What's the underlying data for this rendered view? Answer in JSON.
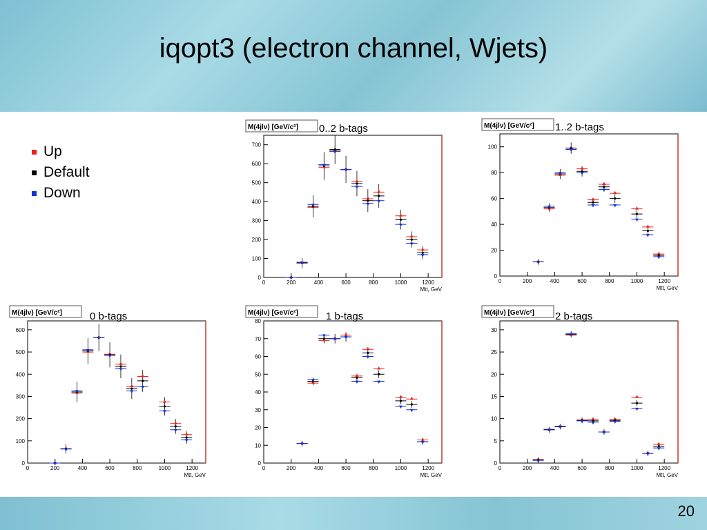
{
  "slide": {
    "title": "iqopt3 (electron channel, Wjets)",
    "page_number": "20",
    "legend": [
      {
        "label": "Up",
        "color": "#e8231c"
      },
      {
        "label": "Default",
        "color": "#000000"
      },
      {
        "label": "Down",
        "color": "#1532d6"
      }
    ]
  },
  "chart_data": [
    {
      "type": "scatter",
      "title": "0..2 b-tags",
      "box_label": "M(4jlν) [GeV/c²]",
      "xlabel": "Mtt, GeV",
      "xlim": [
        0,
        1300
      ],
      "ylim": [
        0,
        750
      ],
      "xticks": [
        0,
        200,
        400,
        600,
        800,
        1000,
        1200
      ],
      "yticks": [
        0,
        100,
        200,
        300,
        400,
        500,
        600,
        700
      ],
      "x": [
        200,
        280,
        360,
        440,
        520,
        600,
        680,
        760,
        840,
        920,
        1000,
        1080,
        1160,
        1240
      ],
      "series": [
        {
          "name": "Up",
          "values": [
            0,
            78,
            370,
            580,
            670,
            568,
            505,
            415,
            450,
            null,
            325,
            215,
            145,
            null
          ]
        },
        {
          "name": "Default",
          "values": [
            0,
            76,
            375,
            588,
            675,
            570,
            495,
            405,
            430,
            null,
            305,
            200,
            130,
            null
          ]
        },
        {
          "name": "Down",
          "values": [
            0,
            80,
            385,
            595,
            665,
            570,
            480,
            390,
            405,
            null,
            280,
            180,
            120,
            null
          ]
        }
      ]
    },
    {
      "type": "scatter",
      "title": "1..2 b-tags",
      "box_label": "M(4jlν) [GeV/c²]",
      "xlabel": "Mtt, GeV",
      "xlim": [
        0,
        1300
      ],
      "ylim": [
        0,
        110
      ],
      "xticks": [
        0,
        200,
        400,
        600,
        800,
        1000,
        1200
      ],
      "yticks": [
        0,
        20,
        40,
        60,
        80,
        100
      ],
      "x": [
        280,
        360,
        440,
        520,
        600,
        680,
        760,
        840,
        920,
        1000,
        1080,
        1160
      ],
      "series": [
        {
          "name": "Up",
          "values": [
            11,
            52,
            78,
            99,
            83,
            59,
            71,
            64,
            null,
            52,
            38,
            17
          ]
        },
        {
          "name": "Default",
          "values": [
            11,
            53,
            79,
            99,
            81,
            57,
            69,
            60,
            null,
            48,
            35,
            16
          ]
        },
        {
          "name": "Down",
          "values": [
            11,
            54,
            80,
            98,
            80,
            55,
            67,
            55,
            null,
            44,
            32,
            15
          ]
        }
      ]
    },
    {
      "type": "scatter",
      "title": "0 b-tags",
      "box_label": "M(4jlν) [GeV/c²]",
      "xlabel": "Mtt, GeV",
      "xlim": [
        0,
        1300
      ],
      "ylim": [
        0,
        640
      ],
      "xticks": [
        0,
        200,
        400,
        600,
        800,
        1000,
        1200
      ],
      "yticks": [
        0,
        100,
        200,
        300,
        400,
        500,
        600
      ],
      "x": [
        200,
        280,
        360,
        440,
        520,
        600,
        680,
        760,
        840,
        920,
        1000,
        1080,
        1160,
        1240
      ],
      "series": [
        {
          "name": "Up",
          "values": [
            0,
            65,
            315,
            500,
            565,
            490,
            445,
            345,
            390,
            null,
            275,
            178,
            128,
            null
          ]
        },
        {
          "name": "Default",
          "values": [
            0,
            64,
            320,
            505,
            565,
            487,
            435,
            335,
            370,
            null,
            255,
            165,
            115,
            null
          ]
        },
        {
          "name": "Down",
          "values": [
            0,
            63,
            325,
            510,
            565,
            485,
            425,
            325,
            345,
            null,
            235,
            150,
            105,
            null
          ]
        }
      ]
    },
    {
      "type": "scatter",
      "title": "1 b-tags",
      "box_label": "M(4jlν) [GeV/c²]",
      "xlabel": "Mtt, GeV",
      "xlim": [
        0,
        1300
      ],
      "ylim": [
        0,
        80
      ],
      "xticks": [
        0,
        200,
        400,
        600,
        800,
        1000,
        1200
      ],
      "yticks": [
        0,
        10,
        20,
        30,
        40,
        50,
        60,
        70,
        80
      ],
      "x": [
        280,
        360,
        440,
        520,
        600,
        680,
        760,
        840,
        920,
        1000,
        1080,
        1160
      ],
      "series": [
        {
          "name": "Up",
          "values": [
            11,
            45,
            69,
            70,
            72,
            49,
            64,
            53,
            null,
            37,
            36,
            13
          ]
        },
        {
          "name": "Default",
          "values": [
            11,
            46,
            70,
            70,
            71,
            48,
            62,
            50,
            null,
            35,
            33,
            12
          ]
        },
        {
          "name": "Down",
          "values": [
            11,
            47,
            72,
            70,
            71,
            46,
            60,
            46,
            null,
            32,
            30,
            12
          ]
        }
      ]
    },
    {
      "type": "scatter",
      "title": "2 b-tags",
      "box_label": "M(4jlν) [GeV/c²]",
      "xlabel": "Mtt, GeV",
      "xlim": [
        0,
        1300
      ],
      "ylim": [
        0,
        32
      ],
      "xticks": [
        0,
        200,
        400,
        600,
        800,
        1000,
        1200
      ],
      "yticks": [
        0,
        5,
        10,
        15,
        20,
        25,
        30
      ],
      "x": [
        280,
        360,
        440,
        520,
        600,
        680,
        760,
        840,
        920,
        1000,
        1080,
        1160
      ],
      "series": [
        {
          "name": "Up",
          "values": [
            0.8,
            7.5,
            8.2,
            28.8,
            9.7,
            9.8,
            7,
            9.8,
            null,
            14.8,
            2.2,
            4.2
          ]
        },
        {
          "name": "Default",
          "values": [
            0.7,
            7.5,
            8.2,
            29,
            9.6,
            9.5,
            7,
            9.6,
            null,
            13.5,
            2.2,
            3.8
          ]
        },
        {
          "name": "Down",
          "values": [
            0.6,
            7.6,
            8.3,
            29.1,
            9.5,
            9.2,
            7,
            9.4,
            null,
            12.3,
            2.2,
            3.4
          ]
        }
      ]
    }
  ]
}
